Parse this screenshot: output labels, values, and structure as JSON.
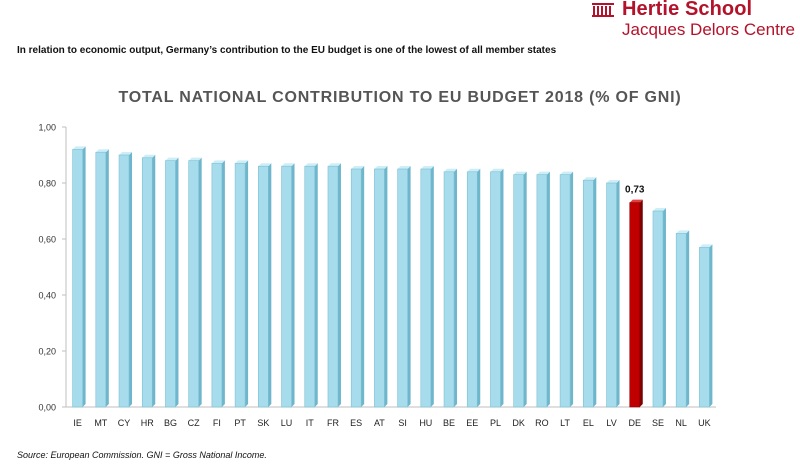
{
  "header": {
    "logo_name": "Hertie School",
    "logo_sub": "Jacques Delors Centre",
    "subtitle": "In relation to economic output, Germany’s contribution to the EU budget is one of the lowest of all member states"
  },
  "footer": {
    "source": "Source: European Commission. GNI = Gross National Income."
  },
  "colors": {
    "brand": "#b3122a",
    "bar": "#a7dcec",
    "bar_highlight": "#c00000"
  },
  "chart_data": {
    "type": "bar",
    "title": "TOTAL NATIONAL CONTRIBUTION TO EU BUDGET 2018 (% OF GNI)",
    "categories": [
      "IE",
      "MT",
      "CY",
      "HR",
      "BG",
      "CZ",
      "FI",
      "PT",
      "SK",
      "LU",
      "IT",
      "FR",
      "ES",
      "AT",
      "SI",
      "HU",
      "BE",
      "EE",
      "PL",
      "DK",
      "RO",
      "LT",
      "EL",
      "LV",
      "DE",
      "SE",
      "NL",
      "UK"
    ],
    "values": [
      0.92,
      0.91,
      0.9,
      0.89,
      0.88,
      0.88,
      0.87,
      0.87,
      0.86,
      0.86,
      0.86,
      0.86,
      0.85,
      0.85,
      0.85,
      0.85,
      0.84,
      0.84,
      0.84,
      0.83,
      0.83,
      0.83,
      0.81,
      0.8,
      0.73,
      0.7,
      0.62,
      0.57
    ],
    "ylim": [
      0,
      1.0
    ],
    "yticks": [
      "0,00",
      "0,20",
      "0,40",
      "0,60",
      "0,80",
      "1,00"
    ],
    "highlight": {
      "category": "DE",
      "label": "0,73"
    },
    "grid": false,
    "legend": "none"
  }
}
